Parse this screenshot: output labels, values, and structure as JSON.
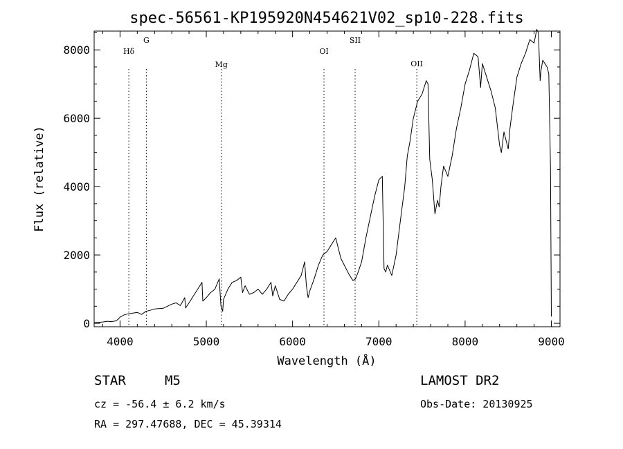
{
  "chart_data": {
    "type": "line",
    "title": "spec-56561-KP195920N454621V02_sp10-228.fits",
    "xlabel": "Wavelength (Å)",
    "ylabel": "Flux (relative)",
    "xlim": [
      3700,
      9100
    ],
    "ylim": [
      -100,
      8550
    ],
    "xticks": [
      4000,
      5000,
      6000,
      7000,
      8000,
      9000
    ],
    "yticks": [
      0,
      2000,
      4000,
      6000,
      8000
    ],
    "grid": false,
    "line_color": "#000000",
    "marker_color": "#000000",
    "lines": [
      {
        "label": "Hδ",
        "x": 4102
      },
      {
        "label": "G",
        "x": 4305
      },
      {
        "label": "Mg",
        "x": 5175
      },
      {
        "label": "OI",
        "x": 6364
      },
      {
        "label": "SII",
        "x": 6725
      },
      {
        "label": "OII",
        "x": 7440
      }
    ],
    "series": [
      {
        "x": [
          3700,
          3750,
          3800,
          3850,
          3900,
          3950,
          3980,
          4000,
          4050,
          4100,
          4150,
          4200,
          4250,
          4300,
          4350,
          4400,
          4450,
          4500,
          4550,
          4600,
          4650,
          4700,
          4750,
          4760,
          4800,
          4850,
          4900,
          4950,
          4960,
          5000,
          5050,
          5100,
          5150,
          5170,
          5190,
          5200,
          5250,
          5300,
          5350,
          5400,
          5420,
          5450,
          5500,
          5550,
          5600,
          5650,
          5700,
          5750,
          5770,
          5800,
          5850,
          5900,
          5950,
          6000,
          6050,
          6100,
          6140,
          6160,
          6180,
          6200,
          6250,
          6300,
          6350,
          6400,
          6450,
          6500,
          6530,
          6560,
          6600,
          6650,
          6700,
          6730,
          6760,
          6800,
          6850,
          6900,
          6950,
          7000,
          7040,
          7060,
          7080,
          7100,
          7150,
          7200,
          7250,
          7300,
          7330,
          7360,
          7400,
          7450,
          7500,
          7550,
          7570,
          7590,
          7620,
          7650,
          7680,
          7700,
          7720,
          7750,
          7800,
          7850,
          7900,
          7950,
          8000,
          8050,
          8100,
          8150,
          8180,
          8200,
          8250,
          8300,
          8350,
          8400,
          8420,
          8450,
          8500,
          8520,
          8550,
          8600,
          8650,
          8700,
          8750,
          8800,
          8830,
          8850,
          8870,
          8880,
          8900,
          8950,
          8970,
          8980,
          8990,
          9000
        ],
        "y": [
          20,
          30,
          40,
          60,
          50,
          70,
          120,
          180,
          250,
          280,
          300,
          320,
          260,
          350,
          380,
          420,
          430,
          440,
          500,
          560,
          600,
          520,
          750,
          450,
          600,
          800,
          1000,
          1200,
          650,
          750,
          900,
          1000,
          1300,
          500,
          350,
          700,
          1000,
          1200,
          1250,
          1350,
          900,
          1100,
          850,
          900,
          1000,
          850,
          1000,
          1200,
          800,
          1100,
          700,
          650,
          850,
          1000,
          1200,
          1400,
          1800,
          1100,
          750,
          950,
          1300,
          1700,
          2000,
          2100,
          2300,
          2500,
          2200,
          1900,
          1700,
          1450,
          1250,
          1300,
          1500,
          1800,
          2500,
          3100,
          3700,
          4200,
          4300,
          1600,
          1500,
          1700,
          1400,
          2000,
          3000,
          4000,
          4900,
          5300,
          6000,
          6500,
          6700,
          7100,
          7000,
          4800,
          4200,
          3200,
          3600,
          3400,
          4000,
          4600,
          4300,
          4900,
          5700,
          6300,
          7000,
          7400,
          7900,
          7800,
          6900,
          7600,
          7200,
          6800,
          6300,
          5200,
          5000,
          5600,
          5100,
          5700,
          6300,
          7200,
          7600,
          7900,
          8300,
          8200,
          8600,
          8500,
          7100,
          7400,
          7700,
          7500,
          7300,
          6000,
          4500,
          200
        ]
      }
    ]
  },
  "info": {
    "object_class": "STAR",
    "subclass": "M5",
    "survey": "LAMOST DR2",
    "cz": "cz = -56.4 ± 6.2 km/s",
    "obs_date": "Obs-Date: 20130925",
    "coords": "RA = 297.47688, DEC =  45.39314"
  }
}
